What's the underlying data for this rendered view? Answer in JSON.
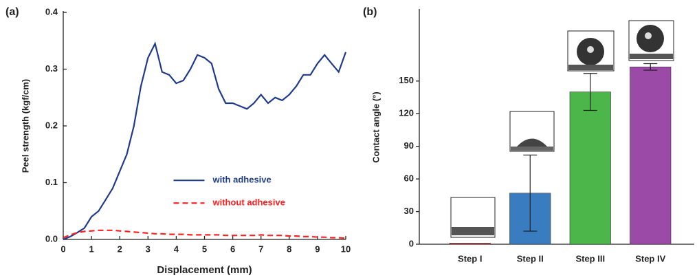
{
  "chart_data": [
    {
      "type": "line",
      "panel_label": "(a)",
      "xlabel": "Displacement (mm)",
      "ylabel": "Peel strength (kgf/cm)",
      "x": [
        0,
        0.25,
        0.5,
        0.75,
        1,
        1.25,
        1.5,
        1.75,
        2,
        2.25,
        2.5,
        2.75,
        3,
        3.25,
        3.5,
        3.75,
        4,
        4.25,
        4.5,
        4.75,
        5,
        5.25,
        5.5,
        5.75,
        6,
        6.25,
        6.5,
        6.75,
        7,
        7.25,
        7.5,
        7.75,
        8,
        8.25,
        8.5,
        8.75,
        9,
        9.25,
        9.5,
        9.75,
        10
      ],
      "series": [
        {
          "name": "with adhesive",
          "color": "#1f3a8a",
          "line_style": "solid",
          "values": [
            0,
            0.005,
            0.012,
            0.02,
            0.04,
            0.05,
            0.07,
            0.09,
            0.12,
            0.15,
            0.2,
            0.27,
            0.32,
            0.345,
            0.295,
            0.29,
            0.275,
            0.28,
            0.3,
            0.325,
            0.32,
            0.31,
            0.265,
            0.24,
            0.24,
            0.235,
            0.23,
            0.24,
            0.255,
            0.24,
            0.25,
            0.245,
            0.255,
            0.27,
            0.29,
            0.29,
            0.31,
            0.325,
            0.31,
            0.295,
            0.33
          ]
        },
        {
          "name": "without adhesive",
          "color": "#ff2020",
          "line_style": "dashed",
          "values": [
            0.003,
            0.008,
            0.012,
            0.014,
            0.015,
            0.016,
            0.016,
            0.016,
            0.015,
            0.014,
            0.013,
            0.012,
            0.011,
            0.01,
            0.01,
            0.009,
            0.009,
            0.009,
            0.008,
            0.008,
            0.008,
            0.008,
            0.008,
            0.007,
            0.007,
            0.007,
            0.007,
            0.007,
            0.008,
            0.007,
            0.007,
            0.007,
            0.006,
            0.006,
            0.005,
            0.005,
            0.004,
            0.004,
            0.003,
            0.003,
            0.002
          ]
        }
      ],
      "xlim": [
        0,
        10
      ],
      "xticks": [
        0,
        1,
        2,
        3,
        4,
        5,
        6,
        7,
        8,
        9,
        10
      ],
      "ylim": [
        0,
        0.4
      ],
      "yticks": [
        {
          "value": 0,
          "label": "0.0"
        },
        0.1,
        0.2,
        0.3,
        0.4
      ],
      "legend": "center-right"
    },
    {
      "type": "bar",
      "panel_label": "(b)",
      "ylabel": "Contact angle (°)",
      "categories": [
        "Step I",
        "Step II",
        "Step III",
        "Step IV"
      ],
      "values": [
        1,
        47,
        140,
        163
      ],
      "errors": [
        0,
        35,
        17,
        3
      ],
      "colors": [
        "#d9343a",
        "#3a7cc0",
        "#4cb64a",
        "#9b4aa8"
      ],
      "ylim": [
        0,
        215
      ],
      "yticks": [
        0,
        30,
        60,
        90,
        120,
        150
      ]
    }
  ]
}
